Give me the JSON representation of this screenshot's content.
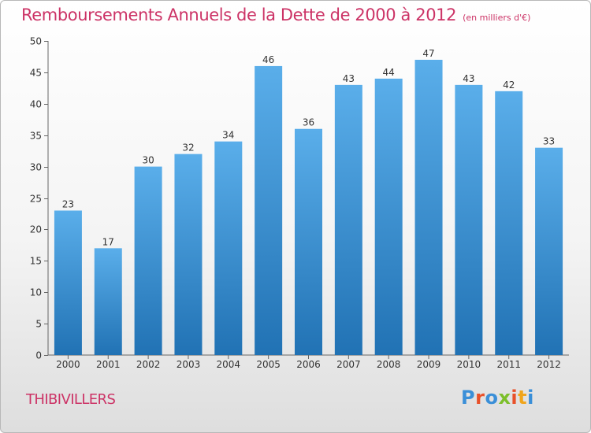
{
  "header": {
    "title": "Remboursements Annuels de la Dette de 2000 à 2012",
    "subtitle": "(en milliers d'€)"
  },
  "footer": {
    "commune": "THIBIVILLERS",
    "logo": "Proxiti"
  },
  "colors": {
    "title": "#cc3366",
    "bar_top": "#5aaeea",
    "bar_bottom": "#2172b4",
    "logo_letters": [
      "#3a8fd8",
      "#e8512a",
      "#3a8fd8",
      "#7cbf2a",
      "#e8512a",
      "#f0a51c",
      "#3a8fd8"
    ]
  },
  "chart_data": {
    "type": "bar",
    "categories": [
      "2000",
      "2001",
      "2002",
      "2003",
      "2004",
      "2005",
      "2006",
      "2007",
      "2008",
      "2009",
      "2010",
      "2011",
      "2012"
    ],
    "values": [
      23,
      17,
      30,
      32,
      34,
      46,
      36,
      43,
      44,
      47,
      43,
      42,
      33
    ],
    "ylim": [
      0,
      50
    ],
    "yticks": [
      0,
      5,
      10,
      15,
      20,
      25,
      30,
      35,
      40,
      45,
      50
    ],
    "grid": false,
    "data_labels": true
  }
}
